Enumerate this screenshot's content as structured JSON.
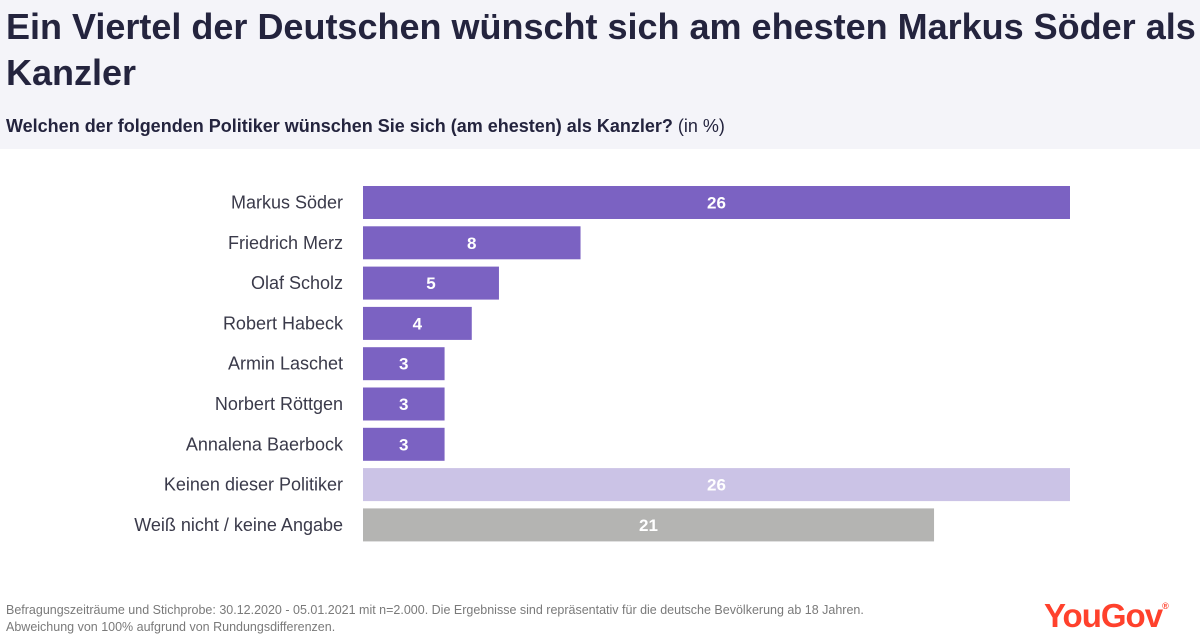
{
  "title": "Ein Viertel der Deutschen wünscht sich am ehesten Markus Söder als Kanzler",
  "subtitle": {
    "question": "Welchen der folgenden Politiker wünschen Sie sich (am ehesten) als Kanzler?",
    "unit": "(in %)"
  },
  "chart_data": {
    "type": "bar",
    "orientation": "horizontal",
    "categories": [
      "Markus Söder",
      "Friedrich Merz",
      "Olaf Scholz",
      "Robert Habeck",
      "Armin Laschet",
      "Norbert Röttgen",
      "Annalena Baerbock",
      "Keinen dieser Politiker",
      "Weiß nicht / keine Angabe"
    ],
    "values": [
      26,
      8,
      5,
      4,
      3,
      3,
      3,
      26,
      21
    ],
    "bar_colors": [
      "#7b62c2",
      "#7b62c2",
      "#7b62c2",
      "#7b62c2",
      "#7b62c2",
      "#7b62c2",
      "#7b62c2",
      "#cbc3e6",
      "#b4b4b2"
    ],
    "xlim": [
      0,
      26
    ],
    "unit": "%",
    "title": "Welchen der folgenden Politiker wünschen Sie sich (am ehesten) als Kanzler?"
  },
  "footer": {
    "line1": "Befragungszeiträume und Stichprobe: 30.12.2020 - 05.01.2021 mit n=2.000. Die Ergebnisse sind repräsentativ für die deutsche Bevölkerung ab 18 Jahren.",
    "line2": "Abweichung von 100% aufgrund von Rundungsdifferenzen."
  },
  "logo": {
    "text": "YouGov",
    "mark": "®",
    "color": "#ff412c"
  }
}
